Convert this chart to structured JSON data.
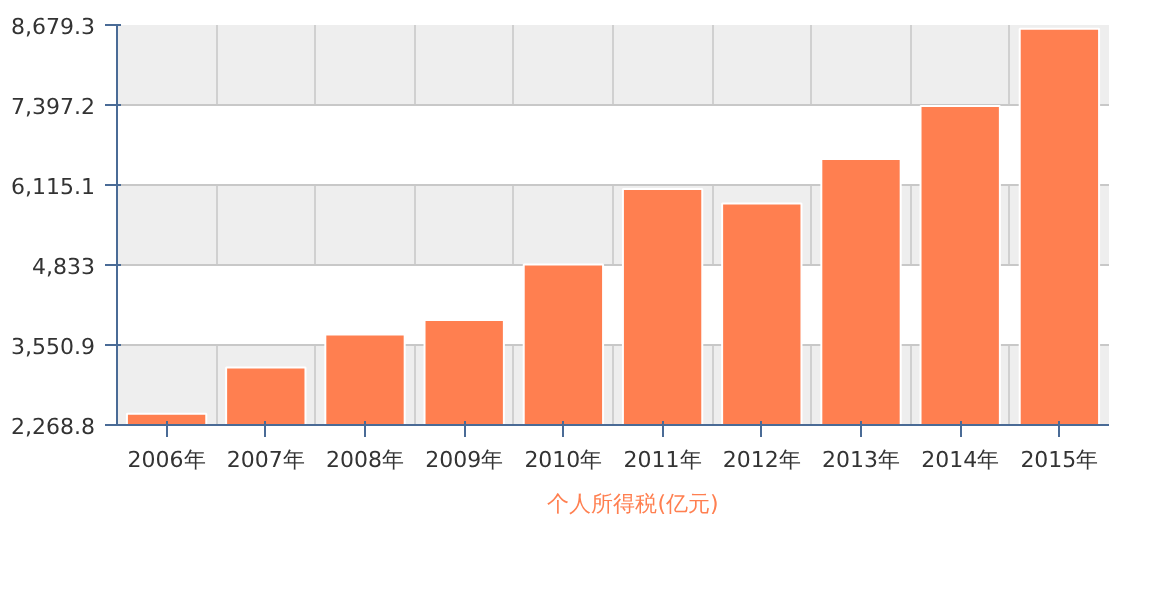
{
  "chart_data": {
    "type": "bar",
    "categories": [
      "2006年",
      "2007年",
      "2008年",
      "2009年",
      "2010年",
      "2011年",
      "2012年",
      "2013年",
      "2014年",
      "2015年"
    ],
    "series": [
      {
        "name": "个人所得税(亿元)",
        "color": "#ff7f50",
        "values": [
          2450,
          3190,
          3720,
          3950,
          4840,
          6050,
          5820,
          6530,
          7380,
          8620
        ]
      }
    ],
    "ylim": [
      2268.8,
      8679.3
    ],
    "yticks": [
      {
        "value": 2268.8,
        "label": "2,268.8"
      },
      {
        "value": 3550.9,
        "label": "3,550.9"
      },
      {
        "value": 4833,
        "label": "4,833"
      },
      {
        "value": 6115.1,
        "label": "6,115.1"
      },
      {
        "value": 7397.2,
        "label": "7,397.2"
      },
      {
        "value": 8679.3,
        "label": "8,679.3"
      }
    ],
    "grid": true,
    "legend": "bottom"
  }
}
